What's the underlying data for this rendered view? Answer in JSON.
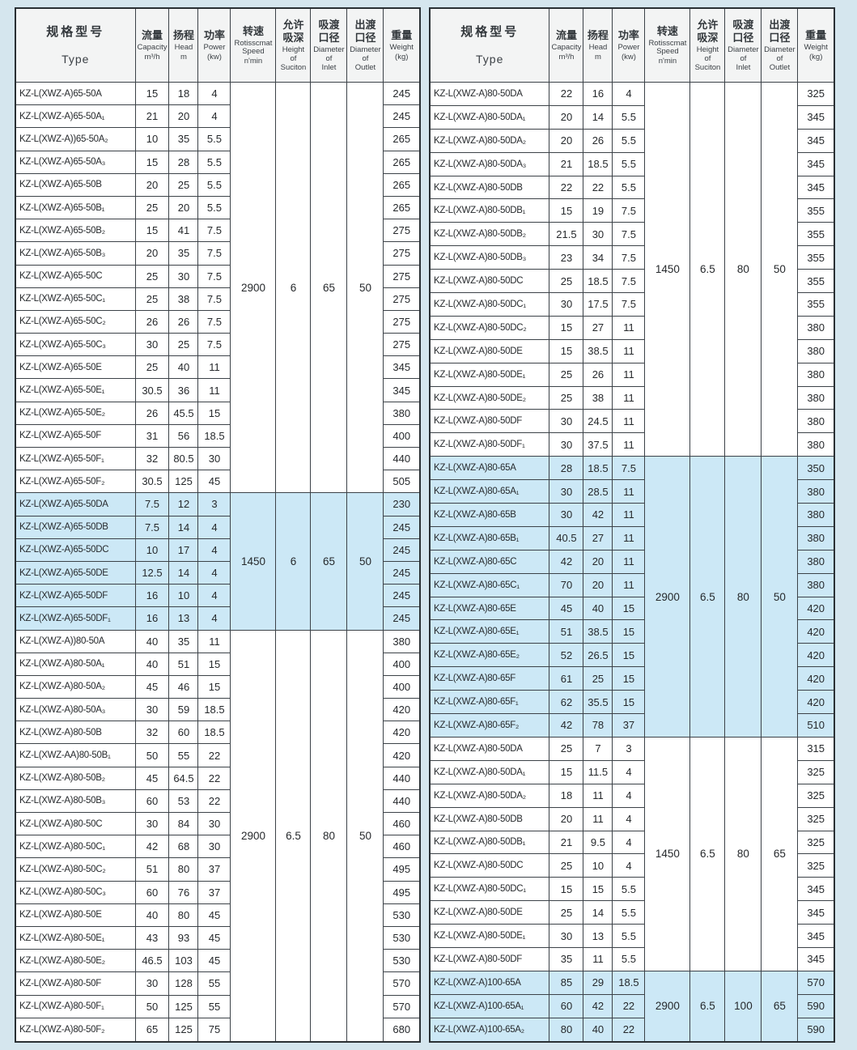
{
  "colors": {
    "page_bg": "#d5e6ee",
    "row_highlight": "#cce8f6",
    "header_bg": "#f3f4f4",
    "border": "#3c4248"
  },
  "columns": [
    {
      "key": "type",
      "zh": "规格型号",
      "en": "Type",
      "sub": ""
    },
    {
      "key": "capacity",
      "zh": "流量",
      "en": "Capacity",
      "sub": "m³/h"
    },
    {
      "key": "head",
      "zh": "扬程",
      "en": "Head",
      "sub": "m"
    },
    {
      "key": "power",
      "zh": "功率",
      "en": "Power",
      "sub": "(kw)"
    },
    {
      "key": "speed",
      "zh": "转速",
      "en": "Rotisscmat\nSpeed",
      "sub": "n'min"
    },
    {
      "key": "suction",
      "zh": "允许\n吸深",
      "en": "Height\nof\nSuciton",
      "sub": ""
    },
    {
      "key": "inlet",
      "zh": "吸渡\n口径",
      "en": "Diameter\nof\nInlet",
      "sub": ""
    },
    {
      "key": "outlet",
      "zh": "出渡\n口径",
      "en": "Diameter\nof\nOutlet",
      "sub": ""
    },
    {
      "key": "weight",
      "zh": "重量",
      "en": "Weight",
      "sub": "(kg)"
    }
  ],
  "tables": [
    {
      "name": "spec-table-left",
      "groups": [
        {
          "speed": "2900",
          "suction": "6",
          "inlet": "65",
          "outlet": "50",
          "highlight": false,
          "rows": [
            {
              "model": "KZ-L(XWZ-A)65-50A",
              "capacity": "15",
              "head": "18",
              "power": "4",
              "weight": "245"
            },
            {
              "model": "KZ-L(XWZ-A)65-50A₁",
              "capacity": "21",
              "head": "20",
              "power": "4",
              "weight": "245"
            },
            {
              "model": "KZ-L(XWZ-A))65-50A₂",
              "capacity": "10",
              "head": "35",
              "power": "5.5",
              "weight": "265"
            },
            {
              "model": "KZ-L(XWZ-A)65-50A₃",
              "capacity": "15",
              "head": "28",
              "power": "5.5",
              "weight": "265"
            },
            {
              "model": "KZ-L(XWZ-A)65-50B",
              "capacity": "20",
              "head": "25",
              "power": "5.5",
              "weight": "265"
            },
            {
              "model": "KZ-L(XWZ-A)65-50B₁",
              "capacity": "25",
              "head": "20",
              "power": "5.5",
              "weight": "265"
            },
            {
              "model": "KZ-L(XWZ-A)65-50B₂",
              "capacity": "15",
              "head": "41",
              "power": "7.5",
              "weight": "275"
            },
            {
              "model": "KZ-L(XWZ-A)65-50B₃",
              "capacity": "20",
              "head": "35",
              "power": "7.5",
              "weight": "275"
            },
            {
              "model": "KZ-L(XWZ-A)65-50C",
              "capacity": "25",
              "head": "30",
              "power": "7.5",
              "weight": "275"
            },
            {
              "model": "KZ-L(XWZ-A)65-50C₁",
              "capacity": "25",
              "head": "38",
              "power": "7.5",
              "weight": "275"
            },
            {
              "model": "KZ-L(XWZ-A)65-50C₂",
              "capacity": "26",
              "head": "26",
              "power": "7.5",
              "weight": "275"
            },
            {
              "model": "KZ-L(XWZ-A)65-50C₃",
              "capacity": "30",
              "head": "25",
              "power": "7.5",
              "weight": "275"
            },
            {
              "model": "KZ-L(XWZ-A)65-50E",
              "capacity": "25",
              "head": "40",
              "power": "11",
              "weight": "345"
            },
            {
              "model": "KZ-L(XWZ-A)65-50E₁",
              "capacity": "30.5",
              "head": "36",
              "power": "11",
              "weight": "345"
            },
            {
              "model": "KZ-L(XWZ-A)65-50E₂",
              "capacity": "26",
              "head": "45.5",
              "power": "15",
              "weight": "380"
            },
            {
              "model": "KZ-L(XWZ-A)65-50F",
              "capacity": "31",
              "head": "56",
              "power": "18.5",
              "weight": "400"
            },
            {
              "model": "KZ-L(XWZ-A)65-50F₁",
              "capacity": "32",
              "head": "80.5",
              "power": "30",
              "weight": "440"
            },
            {
              "model": "KZ-L(XWZ-A)65-50F₂",
              "capacity": "30.5",
              "head": "125",
              "power": "45",
              "weight": "505"
            }
          ]
        },
        {
          "speed": "1450",
          "suction": "6",
          "inlet": "65",
          "outlet": "50",
          "highlight": true,
          "rows": [
            {
              "model": "KZ-L(XWZ-A)65-50DA",
              "capacity": "7.5",
              "head": "12",
              "power": "3",
              "weight": "230"
            },
            {
              "model": "KZ-L(XWZ-A)65-50DB",
              "capacity": "7.5",
              "head": "14",
              "power": "4",
              "weight": "245"
            },
            {
              "model": "KZ-L(XWZ-A)65-50DC",
              "capacity": "10",
              "head": "17",
              "power": "4",
              "weight": "245"
            },
            {
              "model": "KZ-L(XWZ-A)65-50DE",
              "capacity": "12.5",
              "head": "14",
              "power": "4",
              "weight": "245"
            },
            {
              "model": "KZ-L(XWZ-A)65-50DF",
              "capacity": "16",
              "head": "10",
              "power": "4",
              "weight": "245"
            },
            {
              "model": "KZ-L(XWZ-A)65-50DF₁",
              "capacity": "16",
              "head": "13",
              "power": "4",
              "weight": "245"
            }
          ]
        },
        {
          "speed": "2900",
          "suction": "6.5",
          "inlet": "80",
          "outlet": "50",
          "highlight": false,
          "rows": [
            {
              "model": "KZ-L(XWZ-A))80-50A",
              "capacity": "40",
              "head": "35",
              "power": "11",
              "weight": "380"
            },
            {
              "model": "KZ-L(XWZ-A)80-50A₁",
              "capacity": "40",
              "head": "51",
              "power": "15",
              "weight": "400"
            },
            {
              "model": "KZ-L(XWZ-A)80-50A₂",
              "capacity": "45",
              "head": "46",
              "power": "15",
              "weight": "400"
            },
            {
              "model": "KZ-L(XWZ-A)80-50A₃",
              "capacity": "30",
              "head": "59",
              "power": "18.5",
              "weight": "420"
            },
            {
              "model": "KZ-L(XWZ-A)80-50B",
              "capacity": "32",
              "head": "60",
              "power": "18.5",
              "weight": "420"
            },
            {
              "model": "KZ-L(XWZ-AA)80-50B₁",
              "capacity": "50",
              "head": "55",
              "power": "22",
              "weight": "420"
            },
            {
              "model": "KZ-L(XWZ-A)80-50B₂",
              "capacity": "45",
              "head": "64.5",
              "power": "22",
              "weight": "440"
            },
            {
              "model": "KZ-L(XWZ-A)80-50B₃",
              "capacity": "60",
              "head": "53",
              "power": "22",
              "weight": "440"
            },
            {
              "model": "KZ-L(XWZ-A)80-50C",
              "capacity": "30",
              "head": "84",
              "power": "30",
              "weight": "460"
            },
            {
              "model": "KZ-L(XWZ-A)80-50C₁",
              "capacity": "42",
              "head": "68",
              "power": "30",
              "weight": "460"
            },
            {
              "model": "KZ-L(XWZ-A)80-50C₂",
              "capacity": "51",
              "head": "80",
              "power": "37",
              "weight": "495"
            },
            {
              "model": "KZ-L(XWZ-A)80-50C₃",
              "capacity": "60",
              "head": "76",
              "power": "37",
              "weight": "495"
            },
            {
              "model": "KZ-L(XWZ-A)80-50E",
              "capacity": "40",
              "head": "80",
              "power": "45",
              "weight": "530"
            },
            {
              "model": "KZ-L(XWZ-A)80-50E₁",
              "capacity": "43",
              "head": "93",
              "power": "45",
              "weight": "530"
            },
            {
              "model": "KZ-L(XWZ-A)80-50E₂",
              "capacity": "46.5",
              "head": "103",
              "power": "45",
              "weight": "530"
            },
            {
              "model": "KZ-L(XWZ-A)80-50F",
              "capacity": "30",
              "head": "128",
              "power": "55",
              "weight": "570"
            },
            {
              "model": "KZ-L(XWZ-A)80-50F₁",
              "capacity": "50",
              "head": "125",
              "power": "55",
              "weight": "570"
            },
            {
              "model": "KZ-L(XWZ-A)80-50F₂",
              "capacity": "65",
              "head": "125",
              "power": "75",
              "weight": "680"
            }
          ]
        }
      ]
    },
    {
      "name": "spec-table-right",
      "groups": [
        {
          "speed": "1450",
          "suction": "6.5",
          "inlet": "80",
          "outlet": "50",
          "highlight": false,
          "rows": [
            {
              "model": "KZ-L(XWZ-A)80-50DA",
              "capacity": "22",
              "head": "16",
              "power": "4",
              "weight": "325"
            },
            {
              "model": "KZ-L(XWZ-A)80-50DA₁",
              "capacity": "20",
              "head": "14",
              "power": "5.5",
              "weight": "345"
            },
            {
              "model": "KZ-L(XWZ-A)80-50DA₂",
              "capacity": "20",
              "head": "26",
              "power": "5.5",
              "weight": "345"
            },
            {
              "model": "KZ-L(XWZ-A)80-50DA₃",
              "capacity": "21",
              "head": "18.5",
              "power": "5.5",
              "weight": "345"
            },
            {
              "model": "KZ-L(XWZ-A)80-50DB",
              "capacity": "22",
              "head": "22",
              "power": "5.5",
              "weight": "345"
            },
            {
              "model": "KZ-L(XWZ-A)80-50DB₁",
              "capacity": "15",
              "head": "19",
              "power": "7.5",
              "weight": "355"
            },
            {
              "model": "KZ-L(XWZ-A)80-50DB₂",
              "capacity": "21.5",
              "head": "30",
              "power": "7.5",
              "weight": "355"
            },
            {
              "model": "KZ-L(XWZ-A)80-50DB₃",
              "capacity": "23",
              "head": "34",
              "power": "7.5",
              "weight": "355"
            },
            {
              "model": "KZ-L(XWZ-A)80-50DC",
              "capacity": "25",
              "head": "18.5",
              "power": "7.5",
              "weight": "355"
            },
            {
              "model": "KZ-L(XWZ-A)80-50DC₁",
              "capacity": "30",
              "head": "17.5",
              "power": "7.5",
              "weight": "355"
            },
            {
              "model": "KZ-L(XWZ-A)80-50DC₂",
              "capacity": "15",
              "head": "27",
              "power": "11",
              "weight": "380"
            },
            {
              "model": "KZ-L(XWZ-A)80-50DE",
              "capacity": "15",
              "head": "38.5",
              "power": "11",
              "weight": "380"
            },
            {
              "model": "KZ-L(XWZ-A)80-50DE₁",
              "capacity": "25",
              "head": "26",
              "power": "11",
              "weight": "380"
            },
            {
              "model": "KZ-L(XWZ-A)80-50DE₂",
              "capacity": "25",
              "head": "38",
              "power": "11",
              "weight": "380"
            },
            {
              "model": "KZ-L(XWZ-A)80-50DF",
              "capacity": "30",
              "head": "24.5",
              "power": "11",
              "weight": "380"
            },
            {
              "model": "KZ-L(XWZ-A)80-50DF₁",
              "capacity": "30",
              "head": "37.5",
              "power": "11",
              "weight": "380"
            }
          ]
        },
        {
          "speed": "2900",
          "suction": "6.5",
          "inlet": "80",
          "outlet": "50",
          "highlight": true,
          "rows": [
            {
              "model": "KZ-L(XWZ-A)80-65A",
              "capacity": "28",
              "head": "18.5",
              "power": "7.5",
              "weight": "350"
            },
            {
              "model": "KZ-L(XWZ-A)80-65A₁",
              "capacity": "30",
              "head": "28.5",
              "power": "11",
              "weight": "380"
            },
            {
              "model": "KZ-L(XWZ-A)80-65B",
              "capacity": "30",
              "head": "42",
              "power": "11",
              "weight": "380"
            },
            {
              "model": "KZ-L(XWZ-A)80-65B₁",
              "capacity": "40.5",
              "head": "27",
              "power": "11",
              "weight": "380"
            },
            {
              "model": "KZ-L(XWZ-A)80-65C",
              "capacity": "42",
              "head": "20",
              "power": "11",
              "weight": "380"
            },
            {
              "model": "KZ-L(XWZ-A)80-65C₁",
              "capacity": "70",
              "head": "20",
              "power": "11",
              "weight": "380"
            },
            {
              "model": "KZ-L(XWZ-A)80-65E",
              "capacity": "45",
              "head": "40",
              "power": "15",
              "weight": "420"
            },
            {
              "model": "KZ-L(XWZ-A)80-65E₁",
              "capacity": "51",
              "head": "38.5",
              "power": "15",
              "weight": "420"
            },
            {
              "model": "KZ-L(XWZ-A)80-65E₂",
              "capacity": "52",
              "head": "26.5",
              "power": "15",
              "weight": "420"
            },
            {
              "model": "KZ-L(XWZ-A)80-65F",
              "capacity": "61",
              "head": "25",
              "power": "15",
              "weight": "420"
            },
            {
              "model": "KZ-L(XWZ-A)80-65F₁",
              "capacity": "62",
              "head": "35.5",
              "power": "15",
              "weight": "420"
            },
            {
              "model": "KZ-L(XWZ-A)80-65F₂",
              "capacity": "42",
              "head": "78",
              "power": "37",
              "weight": "510"
            }
          ]
        },
        {
          "speed": "1450",
          "suction": "6.5",
          "inlet": "80",
          "outlet": "65",
          "highlight": false,
          "rows": [
            {
              "model": "KZ-L(XWZ-A)80-50DA",
              "capacity": "25",
              "head": "7",
              "power": "3",
              "weight": "315"
            },
            {
              "model": "KZ-L(XWZ-A)80-50DA₁",
              "capacity": "15",
              "head": "11.5",
              "power": "4",
              "weight": "325"
            },
            {
              "model": "KZ-L(XWZ-A)80-50DA₂",
              "capacity": "18",
              "head": "11",
              "power": "4",
              "weight": "325"
            },
            {
              "model": "KZ-L(XWZ-A)80-50DB",
              "capacity": "20",
              "head": "11",
              "power": "4",
              "weight": "325"
            },
            {
              "model": "KZ-L(XWZ-A)80-50DB₁",
              "capacity": "21",
              "head": "9.5",
              "power": "4",
              "weight": "325"
            },
            {
              "model": "KZ-L(XWZ-A)80-50DC",
              "capacity": "25",
              "head": "10",
              "power": "4",
              "weight": "325"
            },
            {
              "model": "KZ-L(XWZ-A)80-50DC₁",
              "capacity": "15",
              "head": "15",
              "power": "5.5",
              "weight": "345"
            },
            {
              "model": "KZ-L(XWZ-A)80-50DE",
              "capacity": "25",
              "head": "14",
              "power": "5.5",
              "weight": "345"
            },
            {
              "model": "KZ-L(XWZ-A)80-50DE₁",
              "capacity": "30",
              "head": "13",
              "power": "5.5",
              "weight": "345"
            },
            {
              "model": "KZ-L(XWZ-A)80-50DF",
              "capacity": "35",
              "head": "11",
              "power": "5.5",
              "weight": "345"
            }
          ]
        },
        {
          "speed": "2900",
          "suction": "6.5",
          "inlet": "100",
          "outlet": "65",
          "highlight": true,
          "rows": [
            {
              "model": "KZ-L(XWZ-A)100-65A",
              "capacity": "85",
              "head": "29",
              "power": "18.5",
              "weight": "570"
            },
            {
              "model": "KZ-L(XWZ-A)100-65A₁",
              "capacity": "60",
              "head": "42",
              "power": "22",
              "weight": "590"
            },
            {
              "model": "KZ-L(XWZ-A)100-65A₂",
              "capacity": "80",
              "head": "40",
              "power": "22",
              "weight": "590"
            }
          ]
        }
      ]
    }
  ]
}
